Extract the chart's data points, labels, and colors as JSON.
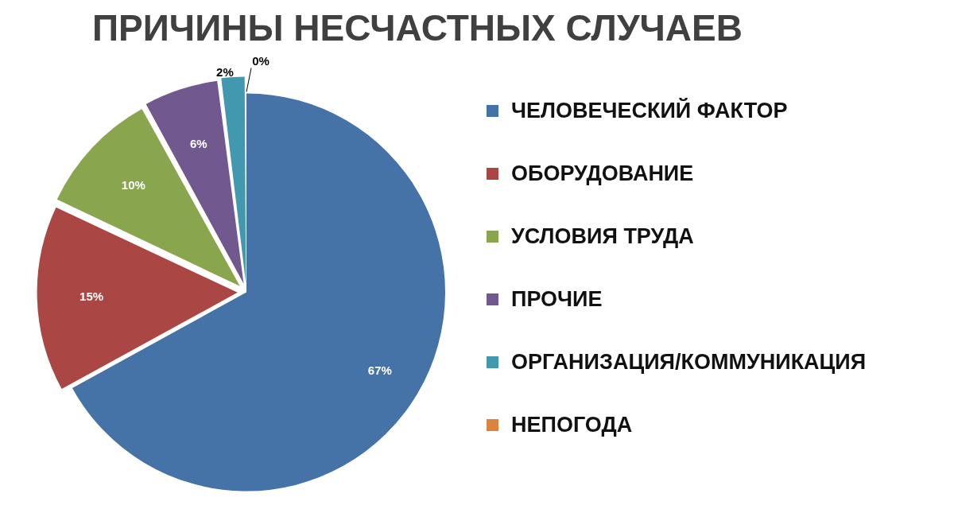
{
  "chart_data": {
    "type": "pie",
    "title": "ПРИЧИНЫ НЕСЧАСТНЫХ СЛУЧАЕВ",
    "categories": [
      "ЧЕЛОВЕЧЕСКИЙ ФАКТОР",
      "ОБОРУДОВАНИЕ",
      "УСЛОВИЯ ТРУДА",
      "ПРОЧИЕ",
      "ОРГАНИЗАЦИЯ/КОММУНИКАЦИЯ",
      "НЕПОГОДА"
    ],
    "values": [
      67,
      15,
      10,
      6,
      2,
      0
    ],
    "value_labels": [
      "67%",
      "15%",
      "10%",
      "6%",
      "2%",
      "0%"
    ],
    "colors": [
      "#4572a7",
      "#aa4643",
      "#89a54e",
      "#71588f",
      "#4198af",
      "#db843d"
    ],
    "legend": "right"
  }
}
